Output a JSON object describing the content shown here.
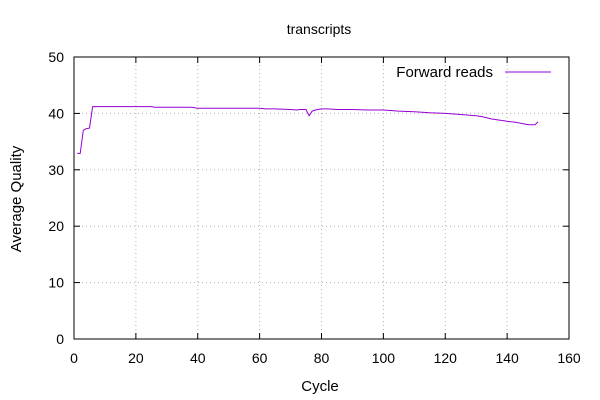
{
  "chart_data": {
    "type": "line",
    "title": "transcripts",
    "xlabel": "Cycle",
    "ylabel": "Average Quality",
    "xlim": [
      0,
      160
    ],
    "ylim": [
      0,
      50
    ],
    "xticks": [
      0,
      20,
      40,
      60,
      80,
      100,
      120,
      140,
      160
    ],
    "yticks": [
      0,
      10,
      20,
      30,
      40,
      50
    ],
    "grid": true,
    "legend_position": "top-right",
    "series": [
      {
        "name": "Forward reads",
        "color": "#9400d3",
        "x": [
          1,
          2,
          3,
          4,
          5,
          6,
          7,
          10,
          15,
          20,
          25,
          26,
          30,
          35,
          38,
          40,
          45,
          50,
          55,
          60,
          62,
          65,
          70,
          72,
          73,
          74,
          75,
          76,
          77,
          78,
          80,
          82,
          85,
          90,
          95,
          100,
          105,
          110,
          115,
          120,
          125,
          130,
          132,
          135,
          140,
          143,
          145,
          147,
          148,
          149,
          150
        ],
        "y": [
          32.9,
          32.9,
          37.0,
          37.3,
          37.4,
          41.2,
          41.2,
          41.2,
          41.2,
          41.2,
          41.2,
          41.1,
          41.1,
          41.1,
          41.1,
          40.9,
          40.9,
          40.9,
          40.9,
          40.9,
          40.8,
          40.8,
          40.7,
          40.6,
          40.7,
          40.7,
          40.7,
          39.6,
          40.4,
          40.6,
          40.8,
          40.8,
          40.7,
          40.7,
          40.6,
          40.6,
          40.4,
          40.3,
          40.1,
          40.0,
          39.8,
          39.6,
          39.4,
          39.0,
          38.6,
          38.4,
          38.2,
          38.0,
          38.0,
          38.0,
          38.5
        ]
      }
    ]
  }
}
